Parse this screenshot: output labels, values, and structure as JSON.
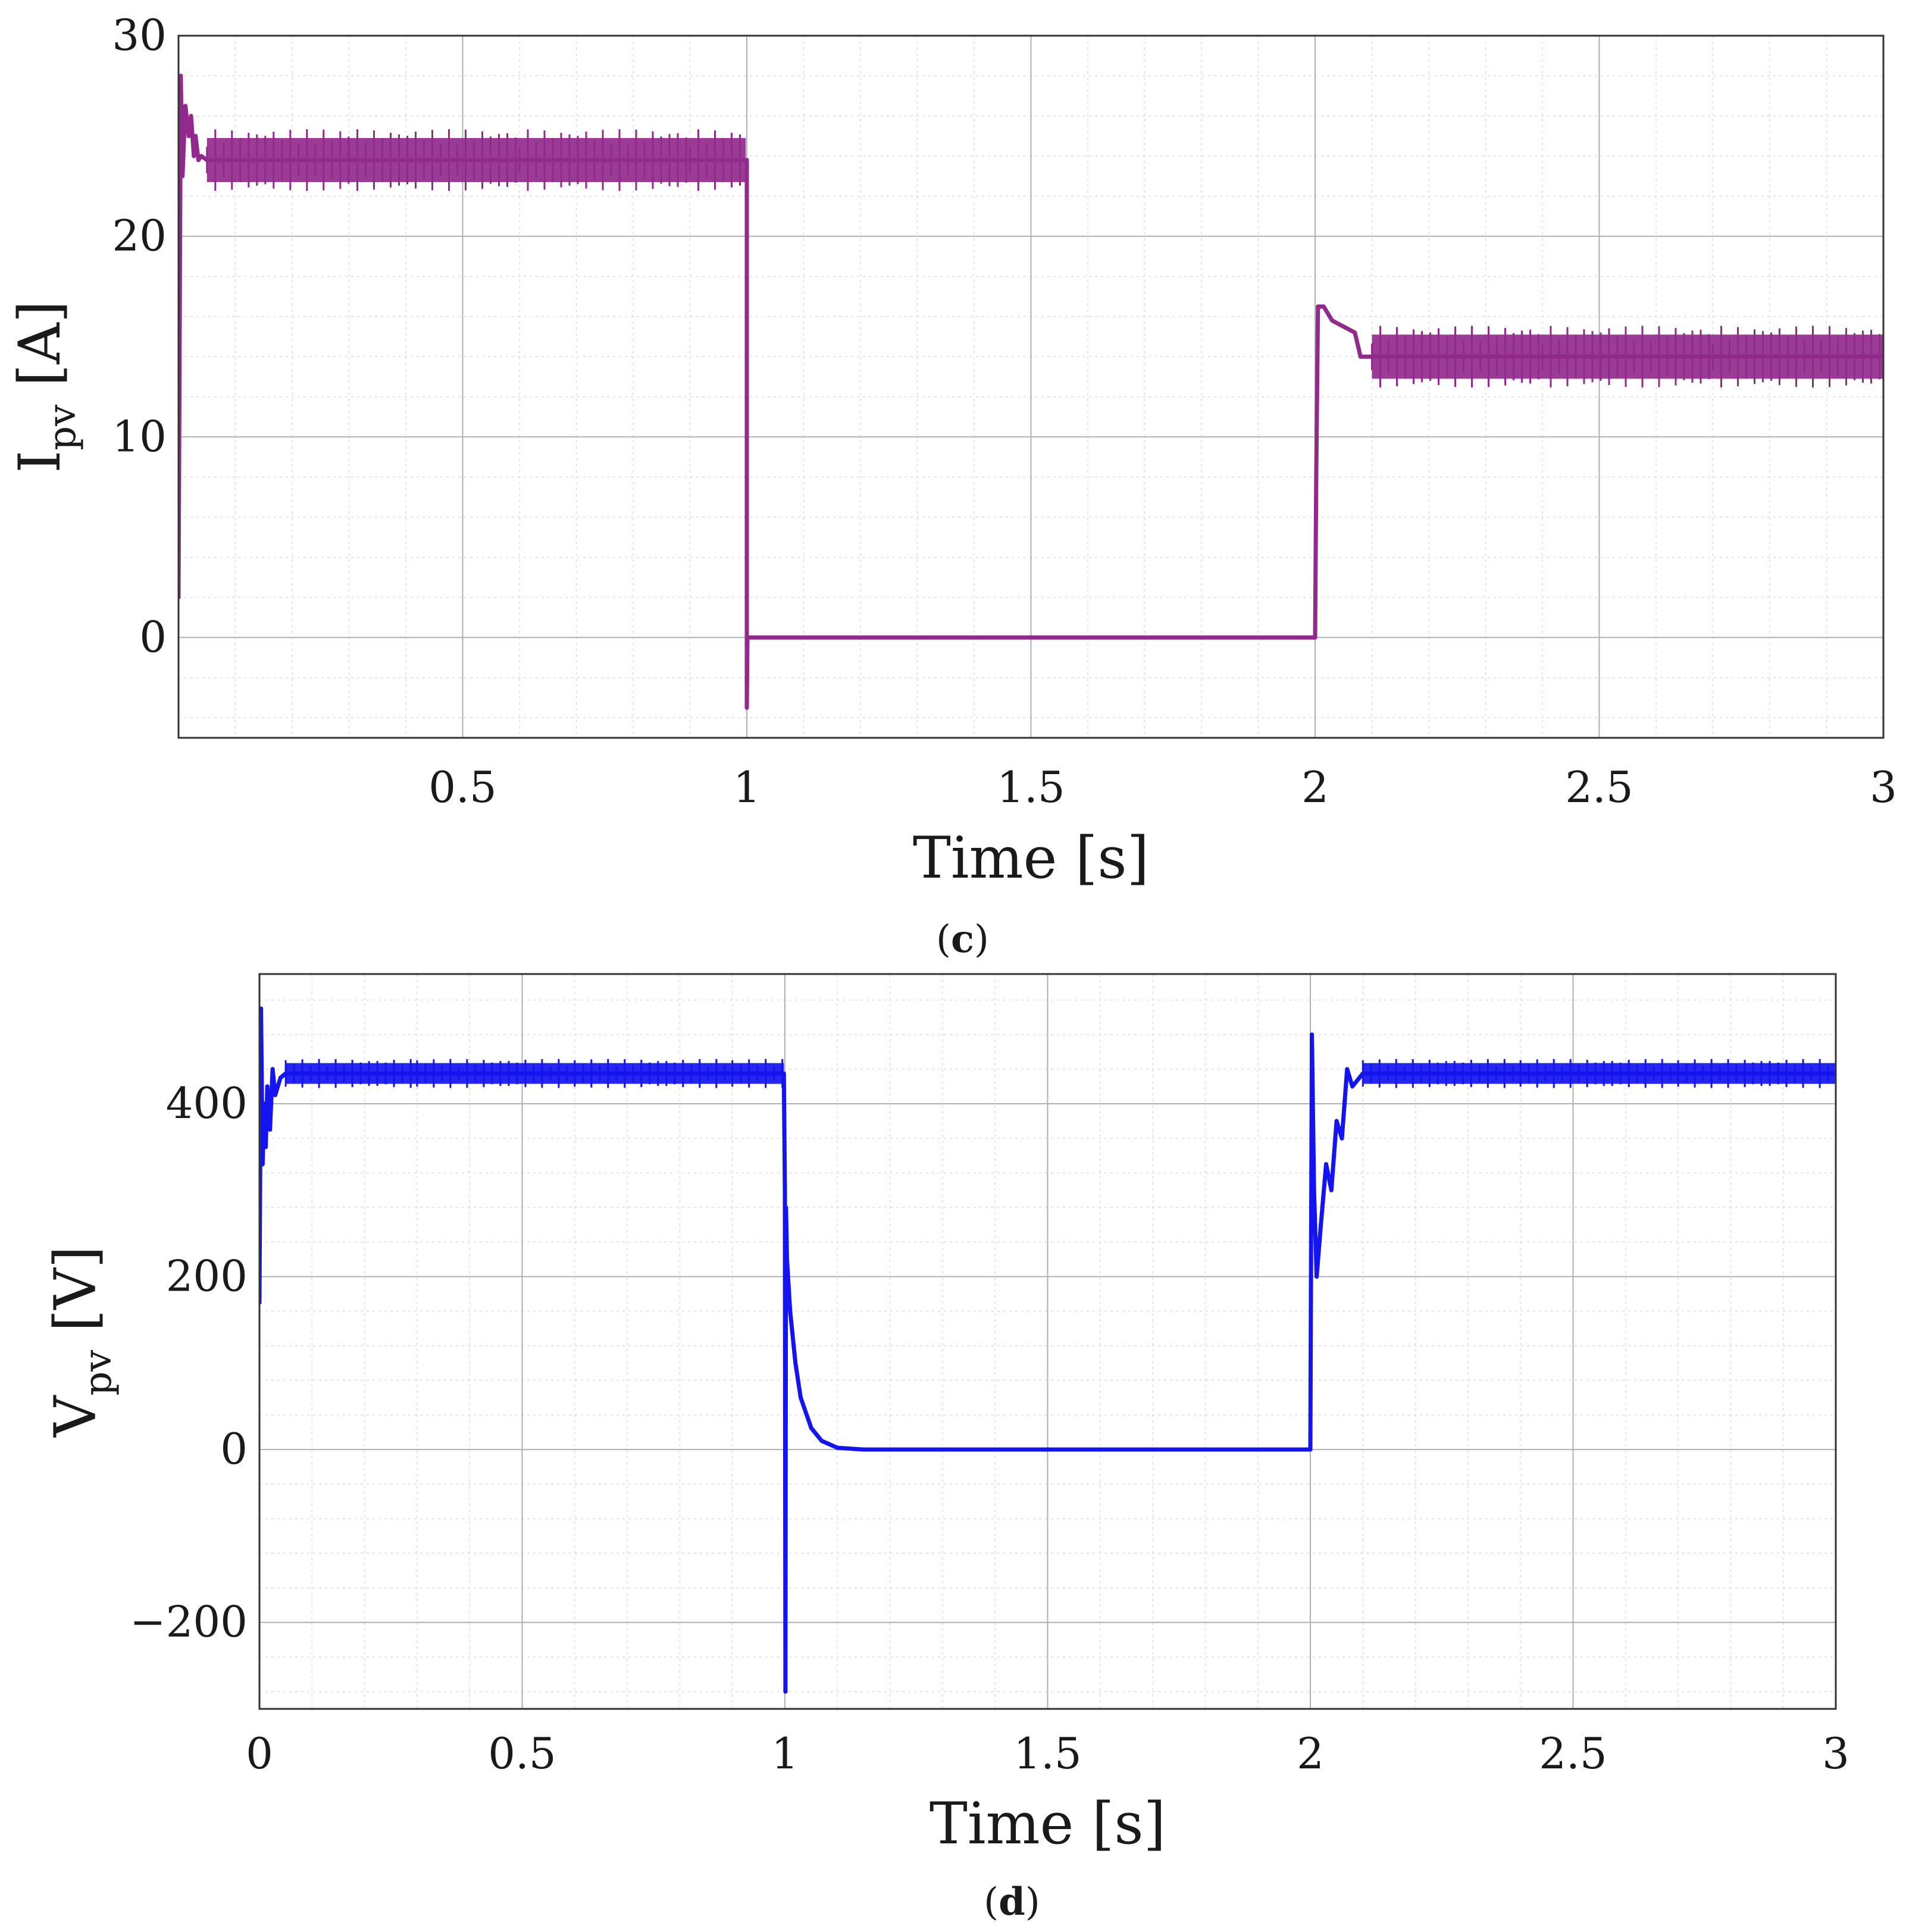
{
  "chart_data": [
    {
      "id": "c",
      "type": "line",
      "caption": "c",
      "xlabel": "Time [s]",
      "ylabel_main": "I",
      "ylabel_sub": "pv",
      "ylabel_unit": "[A]",
      "xlim": [
        0,
        3
      ],
      "ylim": [
        -5,
        30
      ],
      "xticks": [
        0.5,
        1,
        1.5,
        2,
        2.5,
        3
      ],
      "xtick_labels": [
        "0.5",
        "1",
        "1.5",
        "2",
        "2.5",
        "3"
      ],
      "yticks": [
        0,
        10,
        20,
        30
      ],
      "ytick_labels": [
        "0",
        "10",
        "20",
        "30"
      ],
      "grid": true,
      "minor_grid": true,
      "ripple": 1.1,
      "series": [
        {
          "color": "#912a8c",
          "x": [
            0,
            0.004,
            0.007,
            0.012,
            0.018,
            0.022,
            0.027,
            0.03,
            0.035,
            0.04,
            0.05,
            0.3,
            0.6,
            0.9,
            0.998,
            1.0,
            1.0,
            1.001,
            1.003,
            1.2,
            1.5,
            1.8,
            1.998,
            2.0,
            2.002,
            2.005,
            2.015,
            2.03,
            2.05,
            2.07,
            2.08,
            2.1,
            2.4,
            2.7,
            3.0
          ],
          "y": [
            2,
            28,
            23,
            26.5,
            25,
            26,
            24,
            25,
            23.8,
            24,
            23.8,
            23.8,
            23.8,
            23.8,
            23.8,
            23.8,
            -3.5,
            0,
            0,
            0,
            0,
            0,
            0,
            0,
            8,
            16.5,
            16.5,
            15.8,
            15.5,
            15.2,
            14,
            14,
            14,
            14,
            14
          ]
        }
      ]
    },
    {
      "id": "d",
      "type": "line",
      "caption": "d",
      "xlabel": "Time [s]",
      "ylabel_main": "V",
      "ylabel_sub": "pv",
      "ylabel_unit": "[V]",
      "xlim": [
        0,
        3
      ],
      "ylim": [
        -300,
        550
      ],
      "xticks": [
        0,
        0.5,
        1,
        1.5,
        2,
        2.5,
        3
      ],
      "xtick_labels": [
        "0",
        "0.5",
        "1",
        "1.5",
        "2",
        "2.5",
        "3"
      ],
      "yticks": [
        -200,
        0,
        200,
        400
      ],
      "ytick_labels": [
        "−200",
        "0",
        "200",
        "400"
      ],
      "grid": true,
      "minor_grid": true,
      "ripple": 12,
      "series": [
        {
          "color": "#1414f0",
          "x": [
            0,
            0.003,
            0.006,
            0.009,
            0.012,
            0.015,
            0.02,
            0.025,
            0.03,
            0.035,
            0.04,
            0.05,
            0.3,
            0.6,
            0.9,
            0.998,
            1.0,
            1.001,
            1.002,
            1.004,
            1.01,
            1.02,
            1.03,
            1.05,
            1.07,
            1.1,
            1.15,
            1.2,
            1.5,
            1.8,
            1.998,
            2.0,
            2.003,
            2.007,
            2.012,
            2.02,
            2.03,
            2.04,
            2.05,
            2.06,
            2.07,
            2.08,
            2.1,
            2.4,
            2.7,
            3.0
          ],
          "y": [
            170,
            510,
            330,
            400,
            350,
            420,
            370,
            440,
            410,
            420,
            430,
            435,
            435,
            435,
            435,
            435,
            300,
            -280,
            280,
            220,
            160,
            100,
            60,
            25,
            10,
            2,
            0,
            0,
            0,
            0,
            0,
            0,
            480,
            300,
            200,
            260,
            330,
            300,
            380,
            360,
            440,
            420,
            435,
            435,
            435,
            435
          ]
        }
      ]
    }
  ]
}
